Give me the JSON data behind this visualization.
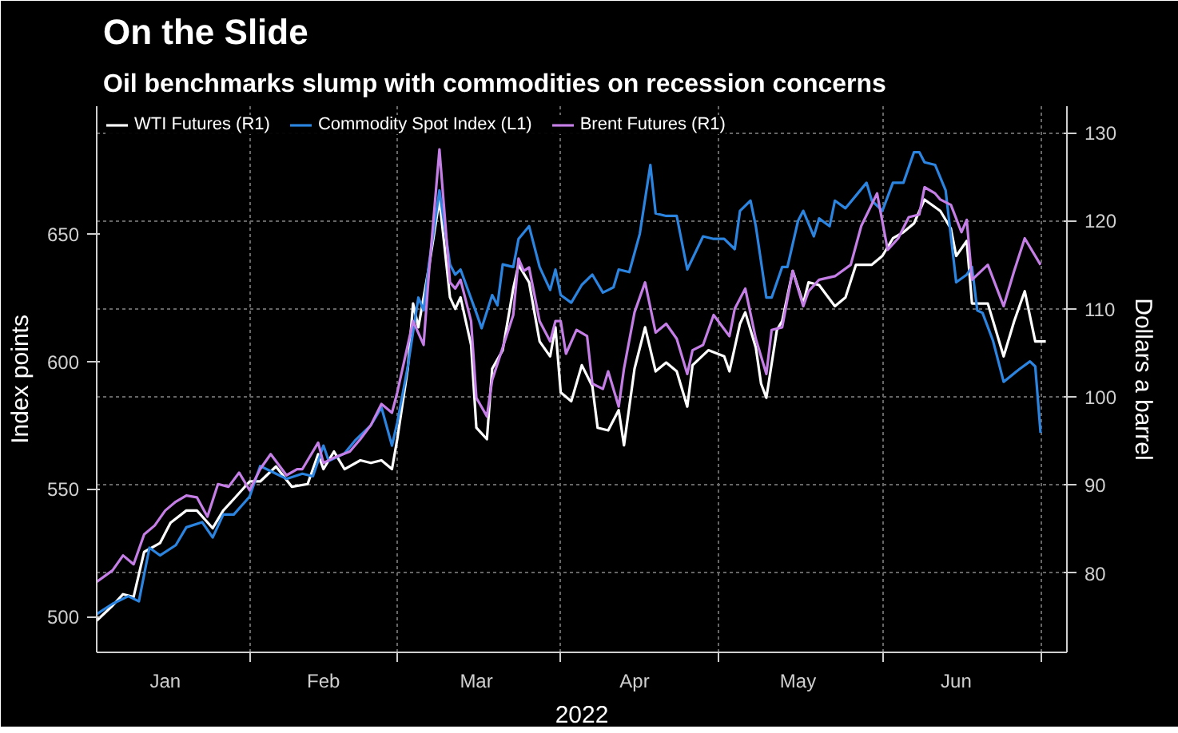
{
  "chart_data": {
    "type": "line",
    "title": "On the Slide",
    "subtitle": "Oil benchmarks slump with commodities on recession concerns",
    "xlabel": "2022",
    "ylabel": "Index points",
    "y2label": "Dollars a barrel",
    "xlim": [
      "2022-01-03",
      "2022-07-06"
    ],
    "xticks": [
      {
        "value": "2022-01-16",
        "label": "Jan"
      },
      {
        "value": "2022-02-01",
        "label": null
      },
      {
        "value": "2022-02-15",
        "label": "Feb"
      },
      {
        "value": "2022-03-01",
        "label": null
      },
      {
        "value": "2022-03-16",
        "label": "Mar"
      },
      {
        "value": "2022-04-01",
        "label": null
      },
      {
        "value": "2022-04-15",
        "label": "Apr"
      },
      {
        "value": "2022-05-01",
        "label": null
      },
      {
        "value": "2022-05-16",
        "label": "May"
      },
      {
        "value": "2022-06-01",
        "label": null
      },
      {
        "value": "2022-06-15",
        "label": "Jun"
      },
      {
        "value": "2022-07-01",
        "label": null
      }
    ],
    "ylim": [
      486,
      700
    ],
    "yticks": [
      500,
      550,
      600,
      650
    ],
    "y2lim": [
      71,
      133
    ],
    "y2ticks": [
      80,
      90,
      100,
      110,
      120,
      130
    ],
    "grid": true,
    "legend": "top left",
    "line_style": "solid",
    "series": [
      {
        "name": "WTI Futures (R1)",
        "color": "#ffffff",
        "axis": "y2",
        "x": [
          "2022-01-03",
          "2022-01-06",
          "2022-01-08",
          "2022-01-10",
          "2022-01-12",
          "2022-01-15",
          "2022-01-17",
          "2022-01-20",
          "2022-01-22",
          "2022-01-25",
          "2022-01-27",
          "2022-01-29",
          "2022-02-01",
          "2022-02-03",
          "2022-02-06",
          "2022-02-09",
          "2022-02-12",
          "2022-02-14",
          "2022-02-15",
          "2022-02-17",
          "2022-02-19",
          "2022-02-22",
          "2022-02-24",
          "2022-02-26",
          "2022-02-28",
          "2022-03-01",
          "2022-03-03",
          "2022-03-04",
          "2022-03-05",
          "2022-03-07",
          "2022-03-09",
          "2022-03-11",
          "2022-03-12",
          "2022-03-13",
          "2022-03-15",
          "2022-03-16",
          "2022-03-18",
          "2022-03-19",
          "2022-03-21",
          "2022-03-23",
          "2022-03-24",
          "2022-03-26",
          "2022-03-28",
          "2022-03-30",
          "2022-03-31",
          "2022-04-01",
          "2022-04-03",
          "2022-04-05",
          "2022-04-07",
          "2022-04-08",
          "2022-04-10",
          "2022-04-12",
          "2022-04-13",
          "2022-04-15",
          "2022-04-17",
          "2022-04-19",
          "2022-04-21",
          "2022-04-23",
          "2022-04-25",
          "2022-04-26",
          "2022-04-29",
          "2022-05-02",
          "2022-05-03",
          "2022-05-05",
          "2022-05-06",
          "2022-05-08",
          "2022-05-09",
          "2022-05-10",
          "2022-05-12",
          "2022-05-13",
          "2022-05-15",
          "2022-05-17",
          "2022-05-18",
          "2022-05-20",
          "2022-05-23",
          "2022-05-25",
          "2022-05-27",
          "2022-05-30",
          "2022-06-01",
          "2022-06-03",
          "2022-06-05",
          "2022-06-07",
          "2022-06-09",
          "2022-06-12",
          "2022-06-14",
          "2022-06-15",
          "2022-06-17",
          "2022-06-18",
          "2022-06-21",
          "2022-06-24",
          "2022-06-26",
          "2022-06-28",
          "2022-06-30",
          "2022-07-02"
        ],
        "values": [
          74.6,
          76.3,
          77.6,
          77.3,
          82.4,
          83.4,
          85.7,
          87.1,
          87.1,
          85.1,
          87.1,
          88.4,
          90.4,
          90.4,
          92.1,
          89.8,
          90.1,
          93.5,
          91.8,
          93.8,
          91.8,
          92.8,
          92.5,
          92.8,
          91.8,
          95.2,
          103.2,
          110.6,
          107.9,
          114.7,
          122.4,
          111.3,
          110.0,
          111.3,
          105.9,
          96.5,
          95.2,
          103.2,
          105.3,
          112.3,
          115.0,
          113.0,
          106.3,
          104.6,
          107.9,
          100.5,
          99.5,
          103.6,
          101.2,
          96.5,
          96.2,
          98.5,
          94.5,
          103.2,
          107.9,
          102.9,
          103.9,
          102.9,
          98.9,
          103.6,
          105.3,
          104.6,
          102.9,
          108.3,
          109.6,
          105.6,
          101.5,
          99.9,
          107.6,
          108.6,
          114.3,
          110.6,
          113.0,
          112.7,
          110.3,
          111.3,
          115.0,
          115.0,
          116.0,
          118.0,
          118.7,
          119.7,
          122.4,
          121.1,
          119.1,
          116.0,
          117.7,
          110.6,
          110.6,
          104.6,
          108.6,
          112.0,
          106.3,
          106.3
        ]
      },
      {
        "name": "Commodity Spot Index (L1)",
        "color": "#2b85e0",
        "x": [
          "2022-01-03",
          "2022-01-06",
          "2022-01-09",
          "2022-01-11",
          "2022-01-13",
          "2022-01-15",
          "2022-01-18",
          "2022-01-20",
          "2022-01-23",
          "2022-01-25",
          "2022-01-27",
          "2022-01-29",
          "2022-02-01",
          "2022-02-03",
          "2022-02-06",
          "2022-02-08",
          "2022-02-11",
          "2022-02-13",
          "2022-02-15",
          "2022-02-16",
          "2022-02-19",
          "2022-02-21",
          "2022-02-24",
          "2022-02-26",
          "2022-02-28",
          "2022-03-01",
          "2022-03-03",
          "2022-03-05",
          "2022-03-06",
          "2022-03-07",
          "2022-03-09",
          "2022-03-11",
          "2022-03-12",
          "2022-03-13",
          "2022-03-16",
          "2022-03-17",
          "2022-03-19",
          "2022-03-20",
          "2022-03-21",
          "2022-03-23",
          "2022-03-24",
          "2022-03-26",
          "2022-03-28",
          "2022-03-30",
          "2022-03-31",
          "2022-04-01",
          "2022-04-03",
          "2022-04-05",
          "2022-04-07",
          "2022-04-09",
          "2022-04-11",
          "2022-04-12",
          "2022-04-14",
          "2022-04-16",
          "2022-04-18",
          "2022-04-19",
          "2022-04-21",
          "2022-04-23",
          "2022-04-25",
          "2022-04-28",
          "2022-04-30",
          "2022-05-02",
          "2022-05-04",
          "2022-05-05",
          "2022-05-07",
          "2022-05-08",
          "2022-05-10",
          "2022-05-11",
          "2022-05-13",
          "2022-05-14",
          "2022-05-16",
          "2022-05-17",
          "2022-05-19",
          "2022-05-20",
          "2022-05-22",
          "2022-05-23",
          "2022-05-25",
          "2022-05-27",
          "2022-05-29",
          "2022-05-30",
          "2022-06-01",
          "2022-06-03",
          "2022-06-05",
          "2022-06-07",
          "2022-06-08",
          "2022-06-09",
          "2022-06-11",
          "2022-06-13",
          "2022-06-15",
          "2022-06-17",
          "2022-06-18",
          "2022-06-19",
          "2022-06-20",
          "2022-06-22",
          "2022-06-24",
          "2022-06-27",
          "2022-06-29",
          "2022-06-30",
          "2022-07-01"
        ],
        "values": [
          501,
          505,
          508,
          506,
          527,
          524,
          528,
          535,
          537,
          531,
          540,
          540,
          547,
          559,
          556,
          554,
          556,
          555,
          567,
          561,
          564,
          569,
          575,
          582,
          567,
          576,
          598,
          625,
          620,
          638,
          667,
          638,
          634,
          636,
          619,
          613,
          626,
          622,
          638,
          637,
          648,
          653,
          637,
          628,
          636,
          626,
          623,
          630,
          634,
          627,
          629,
          636,
          635,
          650,
          677,
          658,
          657,
          657,
          636,
          649,
          648,
          648,
          644,
          659,
          663,
          653,
          625,
          625,
          637,
          637,
          655,
          659,
          649,
          656,
          653,
          663,
          660,
          665,
          670,
          663,
          659,
          670,
          670,
          682,
          682,
          678,
          677,
          667,
          631,
          634,
          637,
          620,
          619,
          608,
          592,
          597,
          600,
          598,
          572
        ]
      },
      {
        "name": "Brent Futures (R1)",
        "color": "#c47ee6",
        "axis": "y2",
        "x": [
          "2022-01-03",
          "2022-01-06",
          "2022-01-08",
          "2022-01-10",
          "2022-01-12",
          "2022-01-14",
          "2022-01-16",
          "2022-01-18",
          "2022-01-20",
          "2022-01-22",
          "2022-01-24",
          "2022-01-26",
          "2022-01-28",
          "2022-01-30",
          "2022-02-01",
          "2022-02-03",
          "2022-02-05",
          "2022-02-08",
          "2022-02-10",
          "2022-02-11",
          "2022-02-14",
          "2022-02-15",
          "2022-02-17",
          "2022-02-20",
          "2022-02-22",
          "2022-02-24",
          "2022-02-26",
          "2022-02-28",
          "2022-03-01",
          "2022-03-04",
          "2022-03-06",
          "2022-03-07",
          "2022-03-09",
          "2022-03-11",
          "2022-03-12",
          "2022-03-13",
          "2022-03-15",
          "2022-03-16",
          "2022-03-18",
          "2022-03-19",
          "2022-03-21",
          "2022-03-23",
          "2022-03-24",
          "2022-03-25",
          "2022-03-26",
          "2022-03-28",
          "2022-03-30",
          "2022-03-31",
          "2022-04-01",
          "2022-04-02",
          "2022-04-04",
          "2022-04-06",
          "2022-04-07",
          "2022-04-09",
          "2022-04-10",
          "2022-04-12",
          "2022-04-13",
          "2022-04-15",
          "2022-04-17",
          "2022-04-19",
          "2022-04-21",
          "2022-04-23",
          "2022-04-25",
          "2022-04-26",
          "2022-04-28",
          "2022-04-30",
          "2022-05-03",
          "2022-05-04",
          "2022-05-06",
          "2022-05-08",
          "2022-05-10",
          "2022-05-11",
          "2022-05-13",
          "2022-05-15",
          "2022-05-17",
          "2022-05-18",
          "2022-05-20",
          "2022-05-23",
          "2022-05-26",
          "2022-05-28",
          "2022-05-31",
          "2022-06-02",
          "2022-06-04",
          "2022-06-06",
          "2022-06-08",
          "2022-06-09",
          "2022-06-11",
          "2022-06-12",
          "2022-06-14",
          "2022-06-16",
          "2022-06-17",
          "2022-06-18",
          "2022-06-21",
          "2022-06-24",
          "2022-06-26",
          "2022-06-28",
          "2022-07-01"
        ],
        "values": [
          79.0,
          80.3,
          82.0,
          81.0,
          84.4,
          85.4,
          87.1,
          88.1,
          88.8,
          88.6,
          86.4,
          90.1,
          89.8,
          91.4,
          89.4,
          91.8,
          93.5,
          91.1,
          91.8,
          91.8,
          94.8,
          92.5,
          93.1,
          93.8,
          95.2,
          96.8,
          99.2,
          98.2,
          100.5,
          108.6,
          105.9,
          114.0,
          128.1,
          113.0,
          112.3,
          113.3,
          108.6,
          99.9,
          97.8,
          101.9,
          105.6,
          109.3,
          115.7,
          114.3,
          114.7,
          108.6,
          106.3,
          108.6,
          108.6,
          104.9,
          107.6,
          106.9,
          101.5,
          100.9,
          102.9,
          98.9,
          103.2,
          109.6,
          113.0,
          107.3,
          108.3,
          106.6,
          102.6,
          105.3,
          105.9,
          109.3,
          106.9,
          110.0,
          112.3,
          106.6,
          102.6,
          107.6,
          107.9,
          114.3,
          110.3,
          112.0,
          113.3,
          113.7,
          115.0,
          119.4,
          123.1,
          116.7,
          118.0,
          120.4,
          120.7,
          123.8,
          123.1,
          122.4,
          121.8,
          118.7,
          120.1,
          113.3,
          115.0,
          110.3,
          114.3,
          118.0,
          115.0
        ]
      }
    ]
  }
}
